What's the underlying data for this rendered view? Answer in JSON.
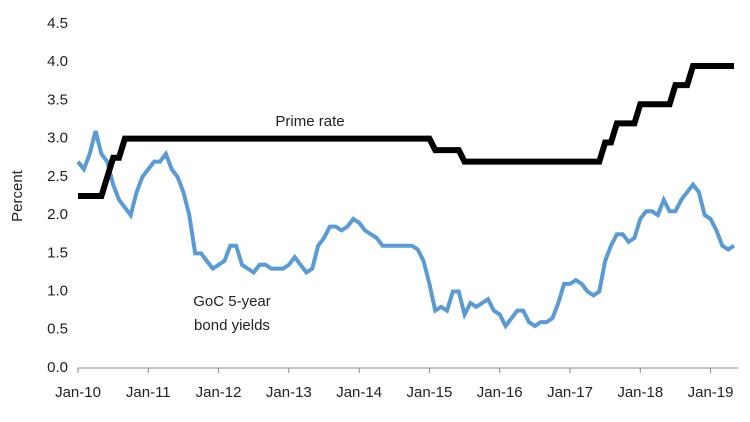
{
  "chart_data": {
    "type": "line",
    "y_label": "Percent",
    "annotations": [
      "Prime rate",
      "GoC 5-year",
      "bond yields"
    ],
    "categories": [
      "Jan-10",
      null,
      null,
      null,
      null,
      null,
      null,
      null,
      null,
      null,
      null,
      null,
      "Jan-11",
      null,
      null,
      null,
      null,
      null,
      null,
      null,
      null,
      null,
      null,
      null,
      "Jan-12",
      null,
      null,
      null,
      null,
      null,
      null,
      null,
      null,
      null,
      null,
      null,
      "Jan-13",
      null,
      null,
      null,
      null,
      null,
      null,
      null,
      null,
      null,
      null,
      null,
      "Jan-14",
      null,
      null,
      null,
      null,
      null,
      null,
      null,
      null,
      null,
      null,
      null,
      "Jan-15",
      null,
      null,
      null,
      null,
      null,
      null,
      null,
      null,
      null,
      null,
      null,
      "Jan-16",
      null,
      null,
      null,
      null,
      null,
      null,
      null,
      null,
      null,
      null,
      null,
      "Jan-17",
      null,
      null,
      null,
      null,
      null,
      null,
      null,
      null,
      null,
      null,
      null,
      "Jan-18",
      null,
      null,
      null,
      null,
      null,
      null,
      null,
      null,
      null,
      null,
      null,
      "Jan-19",
      null,
      null,
      null,
      null
    ],
    "series": [
      {
        "name": "Prime rate",
        "color": "#000000",
        "values": [
          2.25,
          2.25,
          2.25,
          2.25,
          2.25,
          2.5,
          2.75,
          2.75,
          3,
          3,
          3,
          3,
          3,
          3,
          3,
          3,
          3,
          3,
          3,
          3,
          3,
          3,
          3,
          3,
          3,
          3,
          3,
          3,
          3,
          3,
          3,
          3,
          3,
          3,
          3,
          3,
          3,
          3,
          3,
          3,
          3,
          3,
          3,
          3,
          3,
          3,
          3,
          3,
          3,
          3,
          3,
          3,
          3,
          3,
          3,
          3,
          3,
          3,
          3,
          3,
          3,
          2.85,
          2.85,
          2.85,
          2.85,
          2.85,
          2.7,
          2.7,
          2.7,
          2.7,
          2.7,
          2.7,
          2.7,
          2.7,
          2.7,
          2.7,
          2.7,
          2.7,
          2.7,
          2.7,
          2.7,
          2.7,
          2.7,
          2.7,
          2.7,
          2.7,
          2.7,
          2.7,
          2.7,
          2.7,
          2.95,
          2.95,
          3.2,
          3.2,
          3.2,
          3.2,
          3.45,
          3.45,
          3.45,
          3.45,
          3.45,
          3.45,
          3.7,
          3.7,
          3.7,
          3.95,
          3.95,
          3.95,
          3.95,
          3.95,
          3.95,
          3.95,
          3.95
        ]
      },
      {
        "name": "GoC 5-year bond yields",
        "color": "#5b9bd5",
        "values": [
          2.7,
          2.6,
          2.8,
          3.1,
          2.8,
          2.7,
          2.4,
          2.2,
          2.1,
          2.0,
          2.3,
          2.5,
          2.6,
          2.7,
          2.7,
          2.8,
          2.6,
          2.5,
          2.3,
          2.0,
          1.5,
          1.5,
          1.4,
          1.3,
          1.35,
          1.4,
          1.6,
          1.6,
          1.35,
          1.3,
          1.25,
          1.35,
          1.35,
          1.3,
          1.3,
          1.3,
          1.35,
          1.45,
          1.35,
          1.25,
          1.3,
          1.6,
          1.7,
          1.85,
          1.85,
          1.8,
          1.85,
          1.95,
          1.9,
          1.8,
          1.75,
          1.7,
          1.6,
          1.6,
          1.6,
          1.6,
          1.6,
          1.6,
          1.55,
          1.4,
          1.1,
          0.75,
          0.8,
          0.75,
          1.0,
          1.0,
          0.7,
          0.85,
          0.8,
          0.85,
          0.9,
          0.75,
          0.7,
          0.55,
          0.65,
          0.75,
          0.75,
          0.6,
          0.55,
          0.6,
          0.6,
          0.65,
          0.85,
          1.1,
          1.1,
          1.15,
          1.1,
          1.0,
          0.95,
          1.0,
          1.4,
          1.6,
          1.75,
          1.75,
          1.65,
          1.7,
          1.95,
          2.05,
          2.05,
          2.0,
          2.2,
          2.05,
          2.05,
          2.2,
          2.3,
          2.4,
          2.3,
          2.0,
          1.95,
          1.8,
          1.6,
          1.55,
          1.6
        ]
      }
    ],
    "ylim": [
      0,
      4.5
    ],
    "yticks": [
      {
        "value": 0,
        "label": "0.0"
      },
      0.5,
      {
        "value": 1,
        "label": "1.0"
      },
      1.5,
      {
        "value": 2,
        "label": "2.0"
      },
      2.5,
      {
        "value": 3,
        "label": "3.0"
      },
      3.5,
      {
        "value": 4,
        "label": "4.0"
      },
      4.5
    ],
    "grid": false,
    "legend": false
  }
}
